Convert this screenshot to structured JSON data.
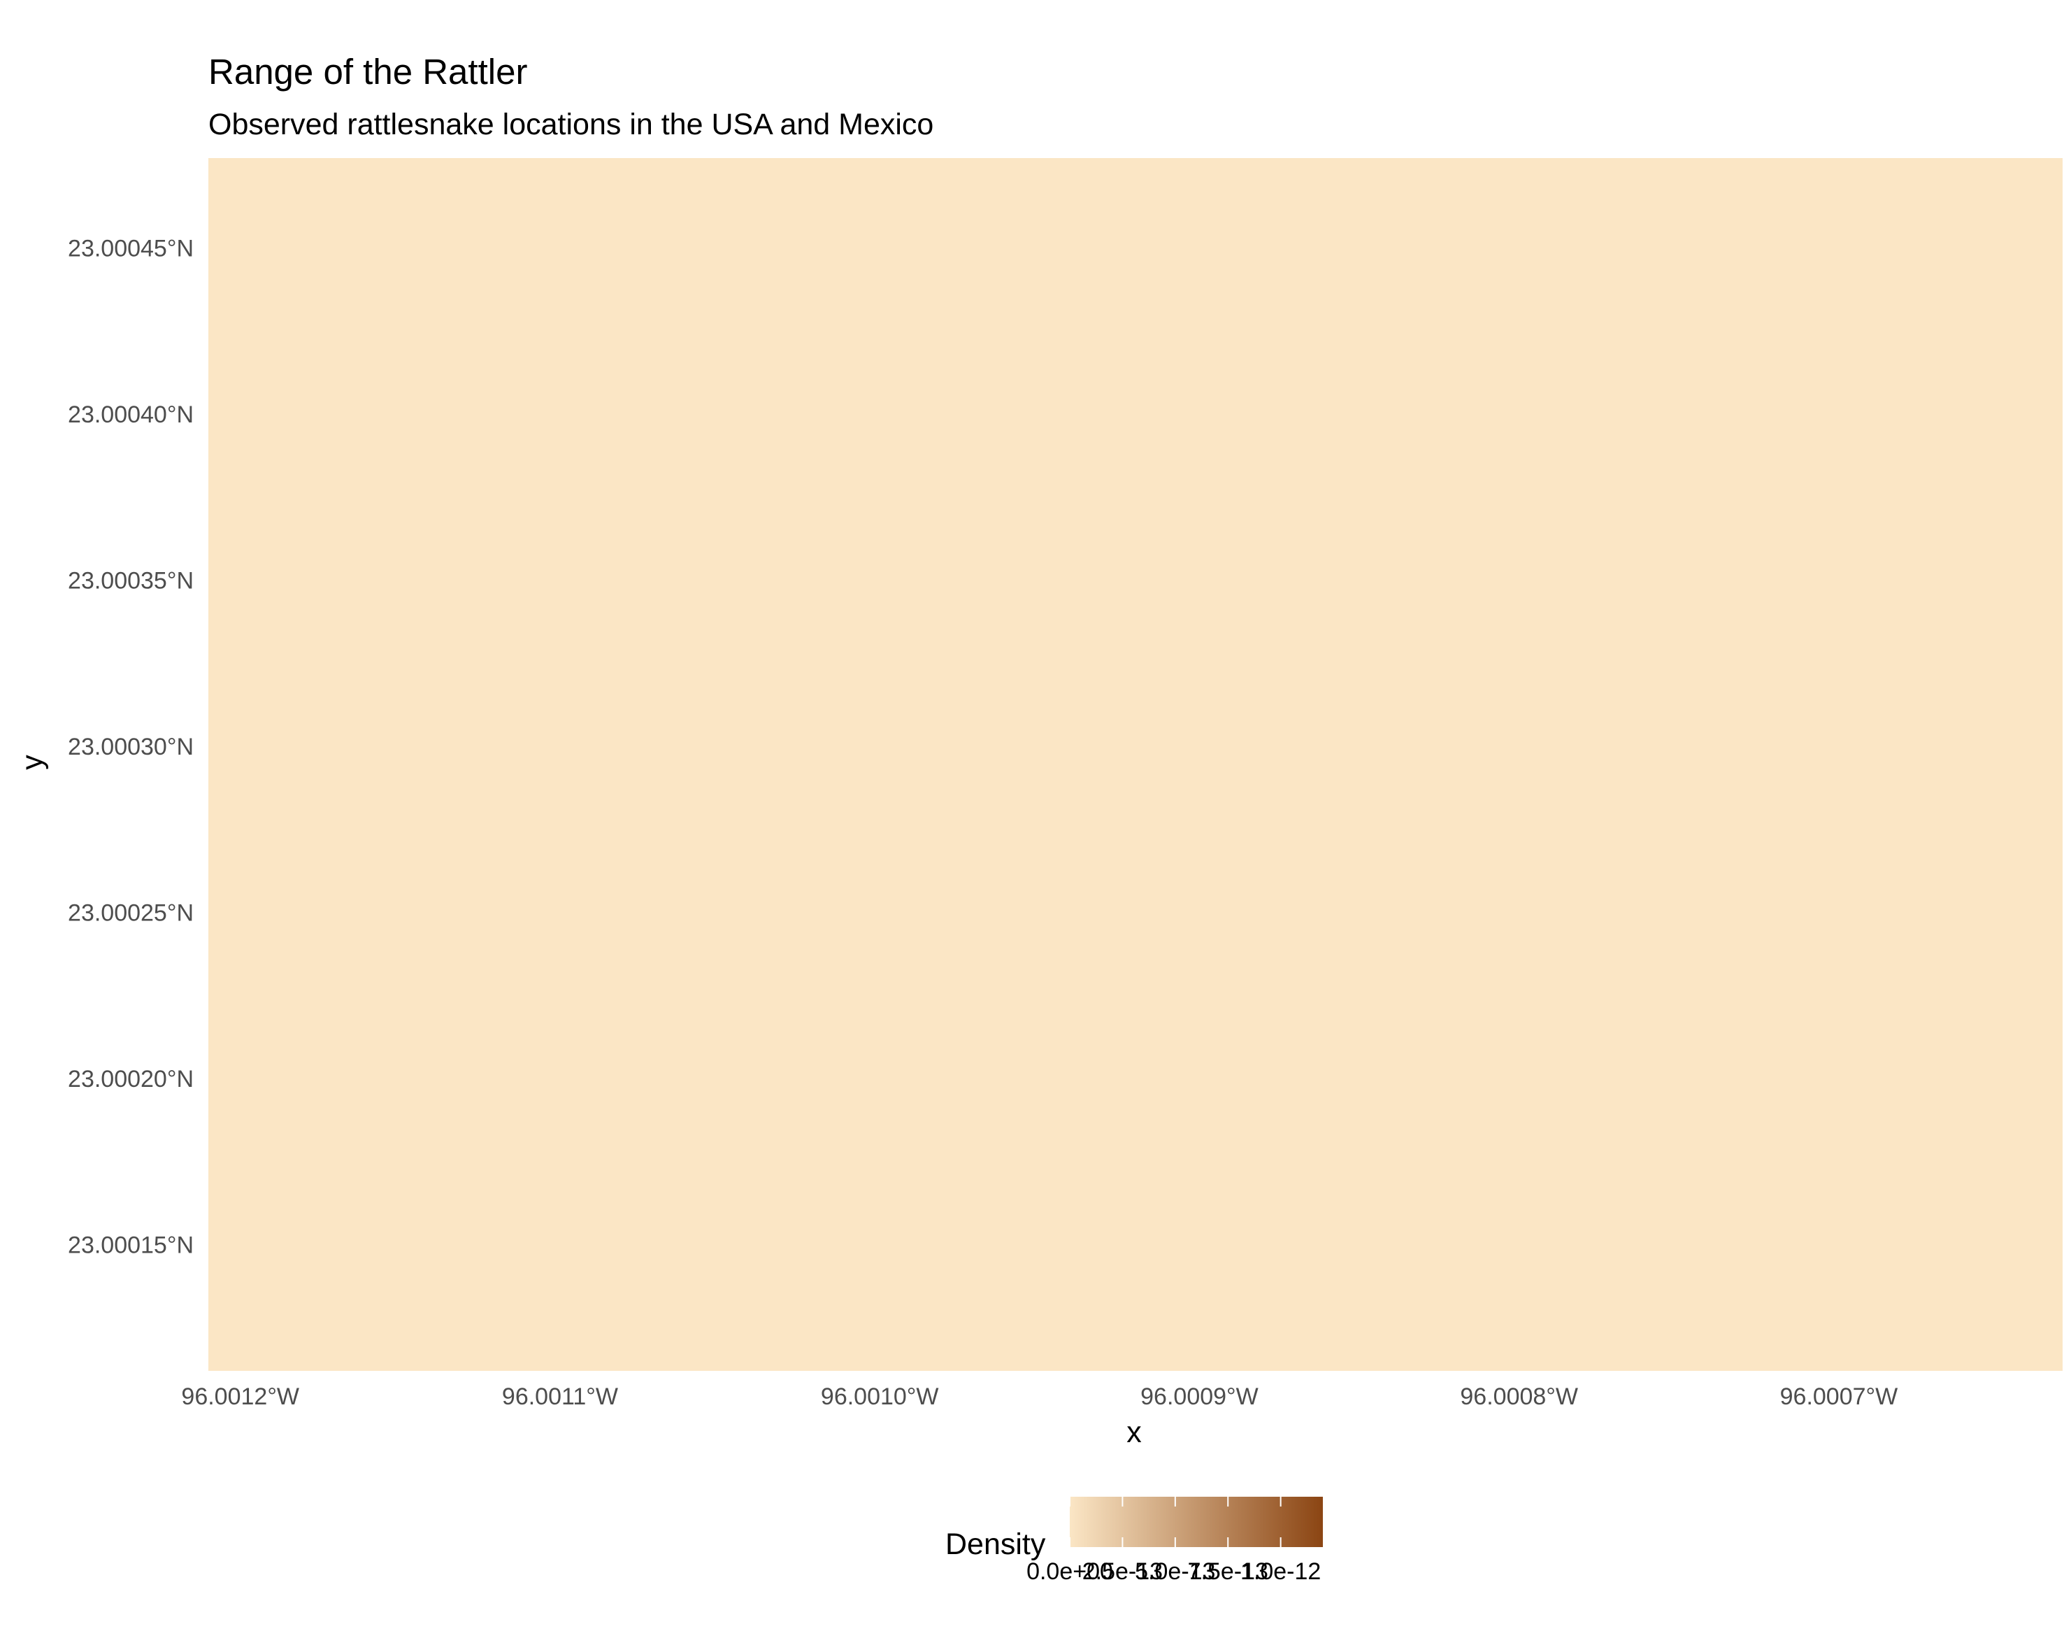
{
  "chart_data": {
    "type": "heatmap",
    "title": "Range of the Rattler",
    "subtitle": "Observed rattlesnake locations in the USA and Mexico",
    "xlabel": "x",
    "ylabel": "y",
    "x_ticks": [
      "96.0012°W",
      "96.0011°W",
      "96.0010°W",
      "96.0009°W",
      "96.0008°W",
      "96.0007°W"
    ],
    "x_tick_values": [
      -96.0012,
      -96.0011,
      -96.001,
      -96.0009,
      -96.0008,
      -96.0007
    ],
    "y_ticks": [
      "23.00045°N",
      "23.00040°N",
      "23.00035°N",
      "23.00030°N",
      "23.00025°N",
      "23.00020°N",
      "23.00015°N"
    ],
    "y_tick_values": [
      23.00045,
      23.0004,
      23.00035,
      23.0003,
      23.00025,
      23.0002,
      23.00015
    ],
    "xlim": [
      -96.00121,
      -96.00063
    ],
    "ylim": [
      23.000112,
      23.000477
    ],
    "fill_value": 0,
    "grid": false,
    "legend": {
      "title": "Density",
      "position": "bottom",
      "labels": [
        "0.0e+00",
        "2.5e-13",
        "5.0e-13",
        "7.5e-13",
        "1.0e-12"
      ],
      "values": [
        0,
        2.5e-13,
        5e-13,
        7.5e-13,
        1e-12
      ],
      "range": [
        0,
        1.2e-12
      ]
    },
    "colors": {
      "low": "#fbe6c5",
      "high": "#8b4513",
      "panel": "#fbe6c5"
    }
  }
}
